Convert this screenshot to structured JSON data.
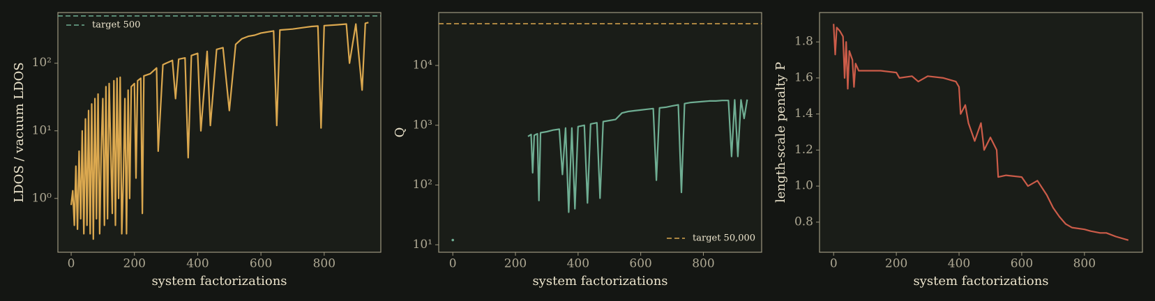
{
  "chart_data": [
    {
      "type": "line",
      "xlabel": "system factorizations",
      "ylabel": "LDOS / vacuum LDOS",
      "log_y": true,
      "xlim": [
        -42,
        979
      ],
      "ylim": [
        0.16,
        562
      ],
      "xticks": [
        0,
        200,
        400,
        600,
        800
      ],
      "yticks": [
        {
          "value": 1,
          "label": "10⁰"
        },
        {
          "value": 10,
          "label": "10¹"
        },
        {
          "value": 100,
          "label": "10²"
        }
      ],
      "legend": "upper left",
      "reference_lines": [
        {
          "value": 500,
          "label": "target 500",
          "color": "#6fae93"
        }
      ],
      "series": [
        {
          "color": "#dba84f",
          "x": [
            0,
            5,
            10,
            15,
            20,
            25,
            30,
            35,
            40,
            45,
            50,
            55,
            60,
            65,
            70,
            75,
            80,
            85,
            90,
            95,
            100,
            105,
            110,
            115,
            120,
            130,
            135,
            140,
            145,
            150,
            155,
            160,
            165,
            170,
            175,
            180,
            185,
            190,
            200,
            205,
            210,
            220,
            225,
            230,
            250,
            270,
            275,
            290,
            300,
            320,
            330,
            340,
            360,
            370,
            380,
            400,
            410,
            430,
            440,
            460,
            480,
            500,
            520,
            540,
            560,
            580,
            600,
            620,
            640,
            650,
            660,
            700,
            740,
            760,
            780,
            790,
            800,
            840,
            870,
            880,
            900,
            920,
            930,
            940
          ],
          "values": [
            0.8,
            1.3,
            0.4,
            3,
            0.35,
            5,
            0.5,
            10,
            0.3,
            15,
            0.4,
            20,
            0.3,
            25,
            0.25,
            30,
            0.5,
            35,
            0.3,
            5,
            30,
            0.4,
            45,
            0.5,
            50,
            0.6,
            55,
            0.4,
            60,
            1,
            62,
            0.3,
            2,
            30,
            0.3,
            40,
            1,
            45,
            50,
            2,
            55,
            60,
            0.6,
            65,
            70,
            85,
            5,
            95,
            100,
            110,
            30,
            115,
            120,
            4,
            130,
            140,
            10,
            150,
            12,
            160,
            170,
            20,
            190,
            230,
            250,
            260,
            280,
            290,
            300,
            12,
            310,
            320,
            340,
            350,
            355,
            11,
            360,
            370,
            380,
            100,
            380,
            40,
            390,
            400
          ]
        }
      ]
    },
    {
      "type": "line",
      "xlabel": "system factorizations",
      "ylabel": "Q",
      "log_y": true,
      "xlim": [
        -45,
        986
      ],
      "ylim": [
        7.5,
        76900
      ],
      "xticks": [
        0,
        200,
        400,
        600,
        800
      ],
      "yticks": [
        {
          "value": 10,
          "label": "10¹"
        },
        {
          "value": 100,
          "label": "10²"
        },
        {
          "value": 1000,
          "label": "10³"
        },
        {
          "value": 10000,
          "label": "10⁴"
        }
      ],
      "legend": "lower right",
      "reference_lines": [
        {
          "value": 50000,
          "label": "target 50,000",
          "color": "#dba84f"
        }
      ],
      "series": [
        {
          "color": "#6fae93",
          "x": [
            0,
            null,
            240,
            250,
            255,
            260,
            270,
            275,
            280,
            300,
            320,
            340,
            350,
            360,
            370,
            380,
            390,
            400,
            420,
            430,
            440,
            460,
            470,
            480,
            500,
            520,
            540,
            560,
            580,
            600,
            620,
            640,
            650,
            660,
            680,
            700,
            720,
            730,
            740,
            760,
            780,
            800,
            820,
            840,
            860,
            880,
            890,
            900,
            910,
            920,
            930,
            940
          ],
          "values": [
            12,
            null,
            650,
            700,
            160,
            680,
            720,
            55,
            750,
            780,
            830,
            860,
            150,
            900,
            35,
            900,
            40,
            950,
            1000,
            50,
            1050,
            1100,
            60,
            1150,
            1200,
            1250,
            1600,
            1700,
            1750,
            1800,
            1850,
            1900,
            120,
            1950,
            2000,
            2100,
            2200,
            75,
            2300,
            2400,
            2450,
            2500,
            2550,
            2550,
            2600,
            2600,
            300,
            2650,
            300,
            2650,
            1300,
            2700
          ]
        }
      ]
    },
    {
      "type": "line",
      "xlabel": "system factorizations",
      "ylabel": "length-scale penalty P",
      "log_y": false,
      "xlim": [
        -45,
        985
      ],
      "ylim": [
        0.633,
        1.963
      ],
      "xticks": [
        0,
        200,
        400,
        600,
        800
      ],
      "yticks": [
        0.8,
        {
          "value": 1,
          "label": "1.0"
        },
        1.2,
        1.4,
        1.6,
        1.8
      ],
      "series": [
        {
          "color": "#cc5c49",
          "x": [
            0,
            5,
            10,
            20,
            30,
            35,
            40,
            45,
            50,
            60,
            65,
            70,
            80,
            100,
            150,
            200,
            210,
            250,
            270,
            300,
            350,
            390,
            400,
            405,
            420,
            430,
            450,
            470,
            480,
            500,
            520,
            525,
            550,
            600,
            620,
            650,
            680,
            700,
            720,
            740,
            760,
            800,
            820,
            850,
            870,
            900,
            940
          ],
          "values": [
            1.9,
            1.73,
            1.88,
            1.86,
            1.83,
            1.6,
            1.8,
            1.54,
            1.75,
            1.7,
            1.55,
            1.68,
            1.64,
            1.64,
            1.64,
            1.63,
            1.6,
            1.61,
            1.58,
            1.61,
            1.6,
            1.58,
            1.55,
            1.4,
            1.45,
            1.35,
            1.25,
            1.35,
            1.2,
            1.27,
            1.2,
            1.05,
            1.06,
            1.05,
            1.0,
            1.03,
            0.95,
            0.88,
            0.83,
            0.79,
            0.77,
            0.76,
            0.75,
            0.74,
            0.74,
            0.72,
            0.7
          ]
        }
      ]
    }
  ]
}
